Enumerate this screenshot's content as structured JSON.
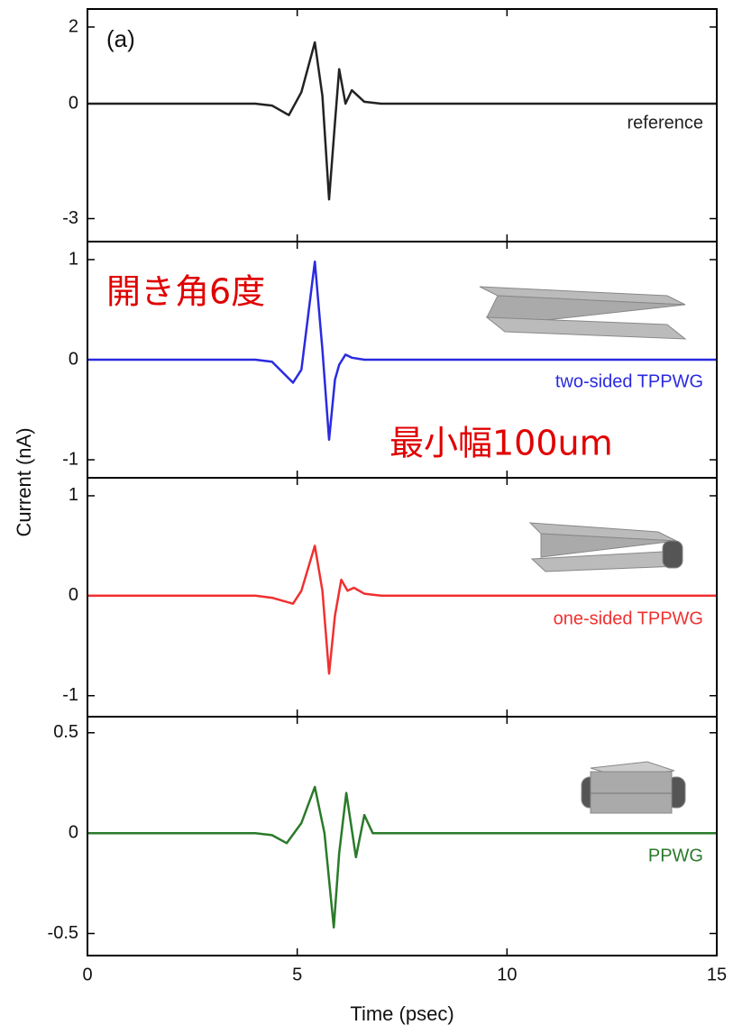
{
  "chart_data": [
    {
      "type": "line",
      "ylabel": "Current (nA)",
      "annotations": [
        "(a)"
      ],
      "x": [
        0,
        4,
        4.4,
        4.8,
        5.1,
        5.42,
        5.6,
        5.76,
        5.9,
        6.0,
        6.15,
        6.3,
        6.6,
        7,
        15
      ],
      "series": [
        {
          "name": "reference",
          "color": "#222222",
          "values": [
            0,
            0,
            -0.05,
            -0.3,
            0.3,
            1.6,
            0.2,
            -2.5,
            -0.5,
            0.9,
            0,
            0.35,
            0.05,
            0,
            0
          ]
        }
      ],
      "xlim": [
        0,
        15
      ],
      "xticks": [
        0,
        5,
        10,
        15
      ],
      "ylim": [
        -3.6,
        2.47
      ],
      "yticks": [
        -3,
        0,
        2
      ]
    },
    {
      "type": "line",
      "annotations": [
        "開き角6度",
        "最小幅100um"
      ],
      "x": [
        0,
        4,
        4.4,
        4.9,
        5.1,
        5.42,
        5.6,
        5.76,
        5.9,
        6.0,
        6.15,
        6.3,
        6.6,
        7,
        15
      ],
      "series": [
        {
          "name": "two-sided TPPWG",
          "color": "#2a2ae0",
          "values": [
            0,
            0,
            -0.02,
            -0.23,
            -0.1,
            0.98,
            0.1,
            -0.8,
            -0.2,
            -0.05,
            0.05,
            0.02,
            0,
            0,
            0
          ]
        }
      ],
      "xlim": [
        0,
        15
      ],
      "xticks": [
        0,
        5,
        10,
        15
      ],
      "ylim": [
        -1.18,
        1.18
      ],
      "yticks": [
        -1,
        0,
        1
      ]
    },
    {
      "type": "line",
      "x": [
        0,
        4,
        4.4,
        4.9,
        5.1,
        5.42,
        5.6,
        5.76,
        5.9,
        6.05,
        6.2,
        6.35,
        6.6,
        7,
        15
      ],
      "series": [
        {
          "name": "one-sided TPPWG",
          "color": "#f03030",
          "values": [
            0,
            0,
            -0.02,
            -0.08,
            0.05,
            0.5,
            0.05,
            -0.78,
            -0.2,
            0.16,
            0.05,
            0.08,
            0.02,
            0,
            0
          ]
        }
      ],
      "xlim": [
        0,
        15
      ],
      "xticks": [
        0,
        5,
        10,
        15
      ],
      "ylim": [
        -1.21,
        1.18
      ],
      "yticks": [
        -1,
        0,
        1
      ]
    },
    {
      "type": "line",
      "xlabel": "Time (psec)",
      "x": [
        0,
        4,
        4.4,
        4.75,
        5.1,
        5.42,
        5.65,
        5.87,
        6.0,
        6.17,
        6.4,
        6.6,
        6.8,
        7.5,
        15
      ],
      "series": [
        {
          "name": "PPWG",
          "color": "#2a7a2a",
          "values": [
            0,
            0,
            -0.01,
            -0.05,
            0.05,
            0.23,
            0.0,
            -0.47,
            -0.1,
            0.2,
            -0.12,
            0.09,
            0,
            0,
            0
          ]
        }
      ],
      "xlim": [
        0,
        15
      ],
      "xticks": [
        0,
        5,
        10,
        15
      ],
      "ylim": [
        -0.61,
        0.58
      ],
      "yticks": [
        -0.5,
        0,
        0.5
      ]
    }
  ]
}
